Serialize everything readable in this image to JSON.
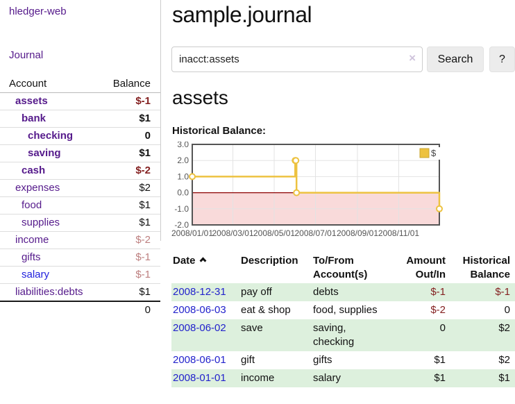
{
  "app": {
    "title": "hledger-web"
  },
  "sidebar": {
    "journal_link": "Journal",
    "table": {
      "headers": {
        "account": "Account",
        "balance": "Balance"
      },
      "rows": [
        {
          "name": "assets",
          "balance": "$-1",
          "indent": 1,
          "bold": true,
          "link_color": "purple",
          "balance_style": "negative"
        },
        {
          "name": "bank",
          "balance": "$1",
          "indent": 2,
          "bold": true,
          "link_color": "purple",
          "balance_style": "normal"
        },
        {
          "name": "checking",
          "balance": "0",
          "indent": 3,
          "bold": true,
          "link_color": "purple",
          "balance_style": "normal"
        },
        {
          "name": "saving",
          "balance": "$1",
          "indent": 3,
          "bold": true,
          "link_color": "purple",
          "balance_style": "normal"
        },
        {
          "name": "cash",
          "balance": "$-2",
          "indent": 2,
          "bold": true,
          "link_color": "purple",
          "balance_style": "negative"
        },
        {
          "name": "expenses",
          "balance": "$2",
          "indent": 1,
          "bold": false,
          "link_color": "purple",
          "balance_style": "normal"
        },
        {
          "name": "food",
          "balance": "$1",
          "indent": 2,
          "bold": false,
          "link_color": "purple",
          "balance_style": "normal"
        },
        {
          "name": "supplies",
          "balance": "$1",
          "indent": 2,
          "bold": false,
          "link_color": "purple",
          "balance_style": "normal"
        },
        {
          "name": "income",
          "balance": "$-2",
          "indent": 1,
          "bold": false,
          "link_color": "purple",
          "balance_style": "negative-soft"
        },
        {
          "name": "gifts",
          "balance": "$-1",
          "indent": 2,
          "bold": false,
          "link_color": "purple",
          "balance_style": "negative-soft"
        },
        {
          "name": "salary",
          "balance": "$-1",
          "indent": 2,
          "bold": false,
          "link_color": "blue",
          "balance_style": "negative-soft"
        },
        {
          "name": "liabilities:debts",
          "balance": "$1",
          "indent": 1,
          "bold": false,
          "link_color": "purple",
          "balance_style": "normal"
        }
      ],
      "total": "0"
    }
  },
  "main": {
    "title": "sample.journal",
    "search": {
      "value": "inacct:assets",
      "clear_icon": "×",
      "button": "Search",
      "help_button": "?"
    },
    "account_heading": "assets"
  },
  "chart_data": {
    "type": "line",
    "title": "Historical Balance:",
    "series": [
      {
        "name": "$",
        "color": "#edc240",
        "marker": "open-circle",
        "step": true,
        "points": [
          [
            "2008-01-01",
            1
          ],
          [
            "2008-06-01",
            2
          ],
          [
            "2008-06-02",
            2
          ],
          [
            "2008-06-03",
            0
          ],
          [
            "2008-12-31",
            -1
          ]
        ]
      }
    ],
    "x_range": [
      "2008-01-01",
      "2008-12-31"
    ],
    "x_ticks": [
      "2008/01/01",
      "2008/03/01",
      "2008/05/01",
      "2008/07/01",
      "2008/09/01",
      "2008/11/01"
    ],
    "y_ticks": [
      3.0,
      2.0,
      1.0,
      0.0,
      -1.0,
      -2.0
    ],
    "ylim": [
      -2,
      3
    ],
    "grid": true,
    "legend_position": "top-right",
    "colors": {
      "grid": "#e3e3e3",
      "border": "#545454",
      "zero_line": "#8b0000",
      "negative_region": "#f9dada",
      "tick_label": "#545454",
      "legend_swatch_border": "#c9a52f"
    }
  },
  "transactions": {
    "headers": {
      "date": "Date",
      "description": "Description",
      "tofrom": "To/From Account(s)",
      "amount": "Amount Out/In",
      "balance": "Historical Balance"
    },
    "rows": [
      {
        "date": "2008-12-31",
        "description": "pay off",
        "accounts": "debts",
        "amount": "$-1",
        "balance": "$-1",
        "amount_negative": true,
        "balance_negative": true
      },
      {
        "date": "2008-06-03",
        "description": "eat & shop",
        "accounts": "food, supplies",
        "amount": "$-2",
        "balance": "0",
        "amount_negative": true,
        "balance_negative": false
      },
      {
        "date": "2008-06-02",
        "description": "save",
        "accounts": "saving, checking",
        "amount": "0",
        "balance": "$2",
        "amount_negative": false,
        "balance_negative": false
      },
      {
        "date": "2008-06-01",
        "description": "gift",
        "accounts": "gifts",
        "amount": "$1",
        "balance": "$2",
        "amount_negative": false,
        "balance_negative": false
      },
      {
        "date": "2008-01-01",
        "description": "income",
        "accounts": "salary",
        "amount": "$1",
        "balance": "$1",
        "amount_negative": false,
        "balance_negative": false
      }
    ]
  }
}
